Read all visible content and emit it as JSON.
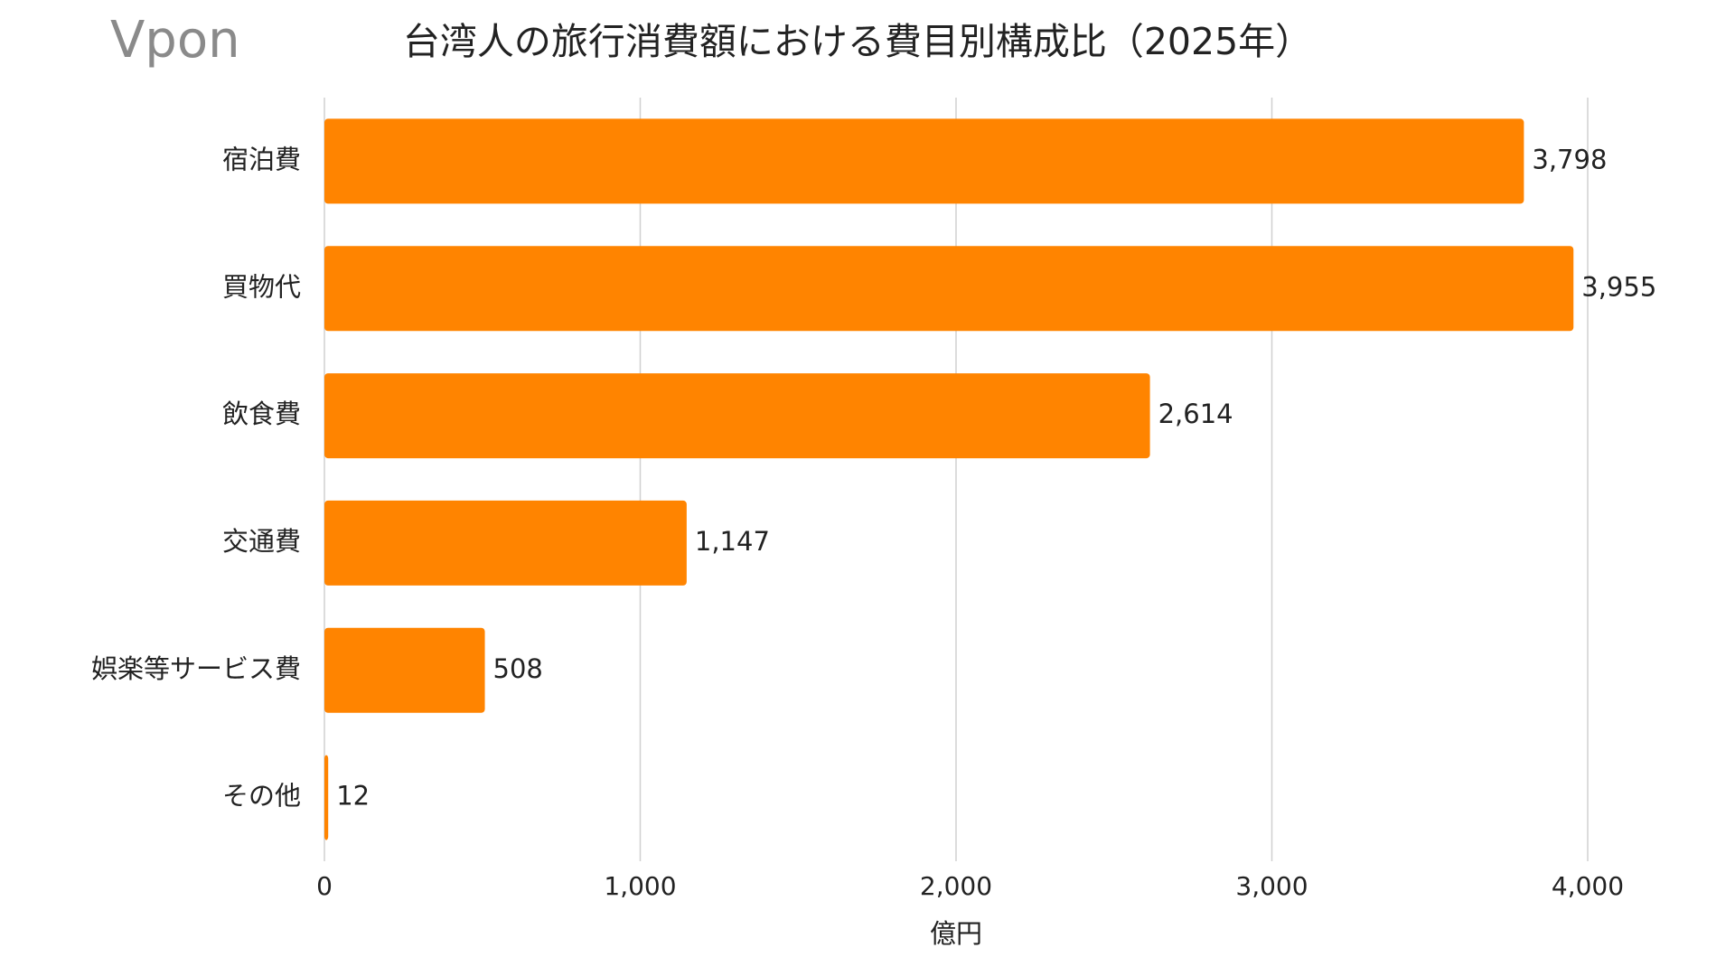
{
  "logo": "Vpon",
  "chart_data": {
    "type": "barh",
    "title": "台湾人の旅行消費額における費目別構成比（2025年）",
    "categories": [
      "宿泊費",
      "買物代",
      "飲食費",
      "交通費",
      "娯楽等サービス費",
      "その他"
    ],
    "values": [
      3798,
      3955,
      2614,
      1147,
      508,
      12
    ],
    "value_labels": [
      "3,798",
      "3,955",
      "2,614",
      "1,147",
      "508",
      "12"
    ],
    "color": "#ff8400",
    "xlabel": "億円",
    "xlim": [
      0,
      4000
    ],
    "xticks": [
      0,
      {
        "value": 1000,
        "label": "1,000"
      },
      {
        "value": 2000,
        "label": "2,000"
      },
      {
        "value": 3000,
        "label": "3,000"
      },
      {
        "value": 4000,
        "label": "4,000"
      }
    ],
    "grid": true
  }
}
